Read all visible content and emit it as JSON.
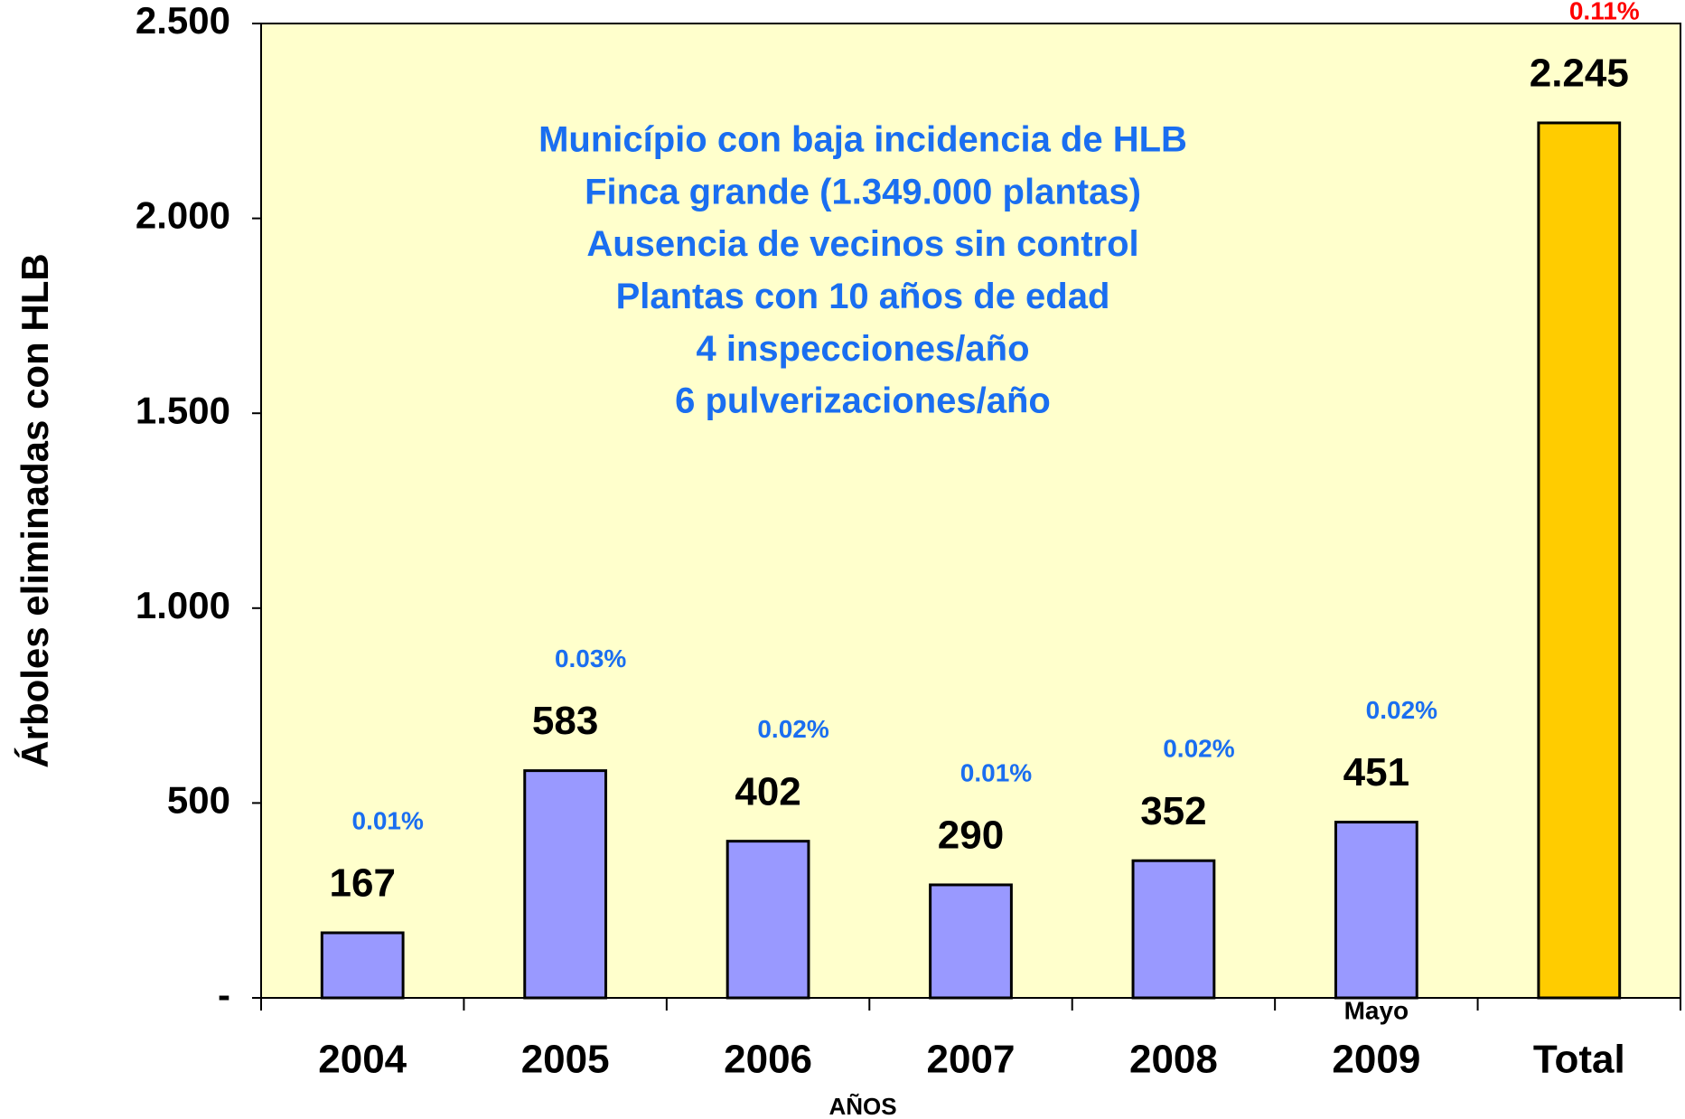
{
  "chart_data": {
    "type": "bar",
    "categories": [
      "2004",
      "2005",
      "2006",
      "2007",
      "2008",
      "2009",
      "Total"
    ],
    "values": [
      167,
      583,
      402,
      290,
      352,
      451,
      2245
    ],
    "value_labels": [
      "167",
      "583",
      "402",
      "290",
      "352",
      "451",
      "2.245"
    ],
    "colors": [
      "#9999ff",
      "#9999ff",
      "#9999ff",
      "#9999ff",
      "#9999ff",
      "#9999ff",
      "#ffcc00"
    ],
    "percent_labels": [
      "0.01%",
      "0.03%",
      "0.02%",
      "0.01%",
      "0.02%",
      "0.02%",
      "0.11%"
    ],
    "percent_label_colors": [
      "#1a6ef0",
      "#1a6ef0",
      "#1a6ef0",
      "#1a6ef0",
      "#1a6ef0",
      "#1a6ef0",
      "#ff0000"
    ],
    "category_note": {
      "category": 5,
      "text": "Mayo"
    },
    "ylim": [
      0,
      2500
    ],
    "yticks": [
      {
        "value": 0,
        "label": "-"
      },
      500,
      {
        "value": 1000,
        "label": "1.000"
      },
      {
        "value": 1500,
        "label": "1.500"
      },
      {
        "value": 2000,
        "label": "2.000"
      },
      {
        "value": 2500,
        "label": "2.500"
      }
    ],
    "y_label": "Árboles eliminadas con HLB",
    "x_label": "AÑOS",
    "annotation": [
      "Município con baja incidencia de HLB",
      "Finca grande (1.349.000 plantas)",
      "Ausencia de vecinos sin control",
      "Plantas con 10 años de edad",
      "4 inspecciones/año",
      "6 pulverizaciones/año"
    ],
    "plot_background": "#ffffcc"
  }
}
